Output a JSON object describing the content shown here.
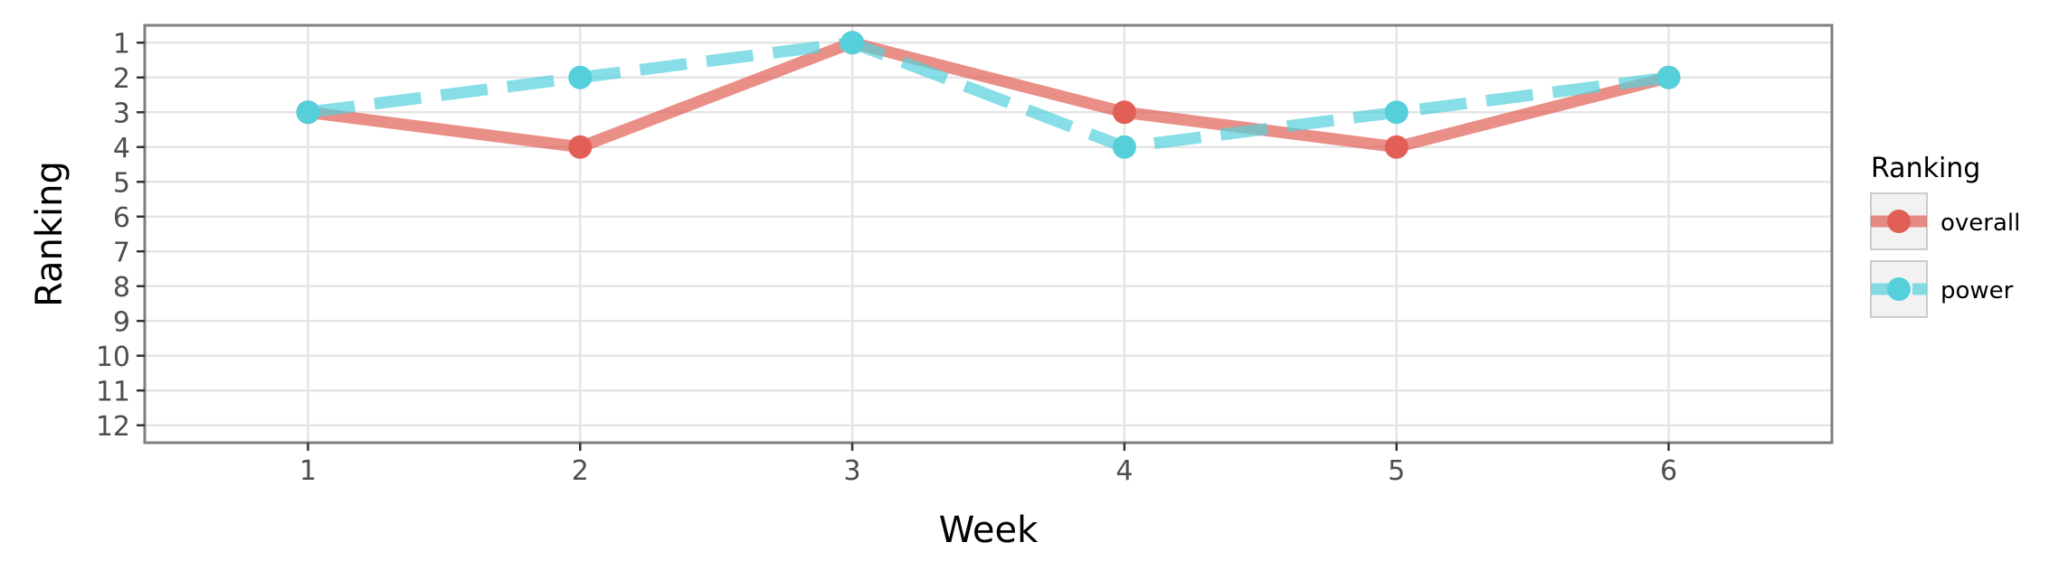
{
  "chart_data": {
    "type": "line",
    "xlabel": "Week",
    "ylabel": "Ranking",
    "x": [
      1,
      2,
      3,
      4,
      5,
      6
    ],
    "xlim": [
      0.4,
      6.6
    ],
    "ylim": [
      12.5,
      0.5
    ],
    "y_reversed": true,
    "x_ticks": [
      1,
      2,
      3,
      4,
      5,
      6
    ],
    "y_ticks": [
      1,
      2,
      3,
      4,
      5,
      6,
      7,
      8,
      9,
      10,
      11,
      12
    ],
    "grid": true,
    "legend": {
      "title": "Ranking",
      "placement": "right"
    },
    "series": [
      {
        "name": "overall",
        "values": [
          3,
          4,
          1,
          3,
          4,
          2
        ],
        "color": "#e15f56",
        "line_style": "solid"
      },
      {
        "name": "power",
        "values": [
          3,
          2,
          1,
          4,
          3,
          2
        ],
        "color": "#55d0db",
        "line_style": "dashed"
      }
    ]
  }
}
